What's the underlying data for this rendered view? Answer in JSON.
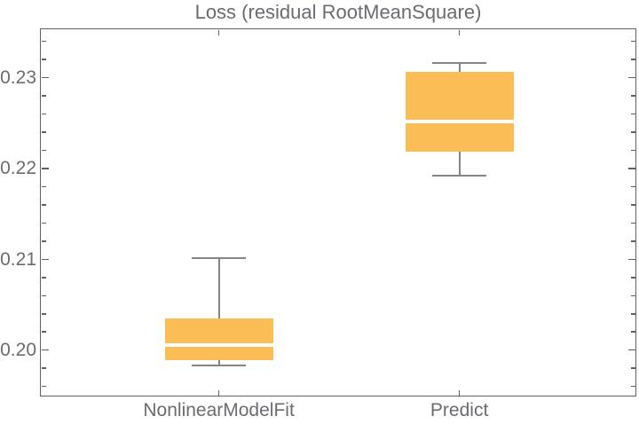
{
  "title": "Loss (residual RootMeanSquare)",
  "chart_data": {
    "type": "boxplot",
    "title": "Loss (residual RootMeanSquare)",
    "categories": [
      "NonlinearModelFit",
      "Predict"
    ],
    "series": [
      {
        "name": "NonlinearModelFit",
        "whisker_low": 0.1983,
        "q1": 0.1989,
        "median": 0.2006,
        "q3": 0.2035,
        "whisker_high": 0.2101
      },
      {
        "name": "Predict",
        "whisker_low": 0.2192,
        "q1": 0.2218,
        "median": 0.2252,
        "q3": 0.2306,
        "whisker_high": 0.2316
      }
    ],
    "ylim": [
      0.1949,
      0.2354
    ],
    "yticks": [
      0.2,
      0.21,
      0.22,
      0.23
    ],
    "ytick_labels": [
      "0.20",
      "0.21",
      "0.22",
      "0.23"
    ],
    "minor_tick_step": 0.002,
    "grid": false,
    "frame": true,
    "legend": "none",
    "colors": {
      "box_fill": "#FBBD55",
      "median_line": "#FFFFFF",
      "whisker": "#858585",
      "frame": "#616161",
      "text": "#696C71"
    }
  }
}
